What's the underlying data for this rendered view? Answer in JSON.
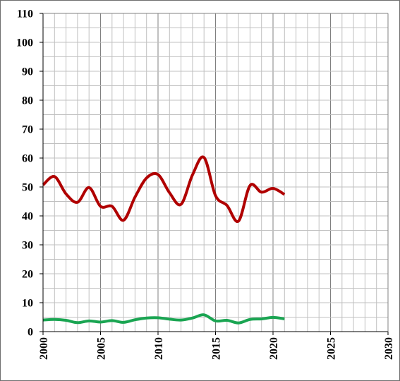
{
  "chart_data": {
    "type": "line",
    "title": "",
    "xlabel": "",
    "ylabel": "",
    "xlim": [
      2000,
      2030
    ],
    "ylim": [
      0,
      110
    ],
    "x_ticks": [
      2000,
      2005,
      2010,
      2015,
      2020,
      2025,
      2030
    ],
    "y_ticks": [
      0,
      10,
      20,
      30,
      40,
      50,
      60,
      70,
      80,
      90,
      100,
      110
    ],
    "grid": true,
    "legend": "none",
    "colors": {
      "series_red": "#b00000",
      "series_green": "#1aa552",
      "grid_minor": "#c0c0c0",
      "grid_major": "#808080",
      "axis": "#000000"
    },
    "x": [
      2000,
      2001,
      2002,
      2003,
      2004,
      2005,
      2006,
      2007,
      2008,
      2009,
      2010,
      2011,
      2012,
      2013,
      2014,
      2015,
      2016,
      2017,
      2018,
      2019,
      2020,
      2021
    ],
    "series": [
      {
        "values": [
          50.7,
          53.6,
          47.6,
          44.7,
          49.8,
          43.3,
          43.3,
          38.5,
          46.5,
          53.1,
          54.3,
          48.0,
          44.0,
          54.2,
          60.2,
          47.0,
          43.6,
          38.2,
          50.5,
          48.2,
          49.5,
          47.4
        ],
        "color": "#b00000"
      },
      {
        "values": [
          4.0,
          4.2,
          3.9,
          3.1,
          3.7,
          3.3,
          3.8,
          3.2,
          4.1,
          4.7,
          4.8,
          4.3,
          4.0,
          4.7,
          5.8,
          3.7,
          3.9,
          3.0,
          4.2,
          4.4,
          4.9,
          4.4
        ],
        "color": "#1aa552"
      }
    ]
  }
}
